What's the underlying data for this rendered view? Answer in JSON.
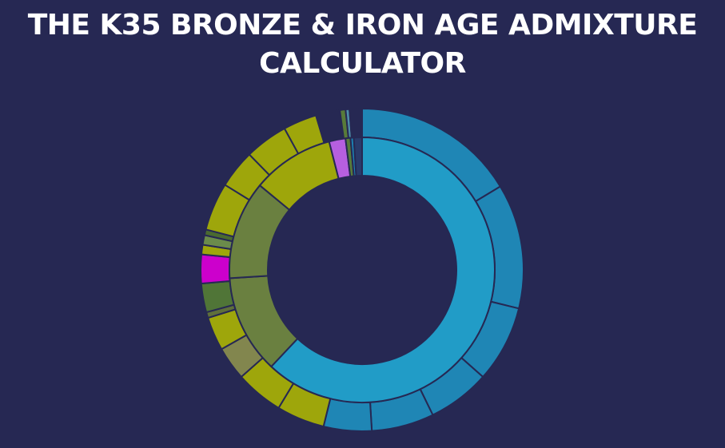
{
  "chart_data": {
    "type": "pie",
    "title": "THE K35 BRONZE & IRON AGE ADMIXTURE CALCULATOR",
    "inner_ring": {
      "values": [
        62.0,
        12.0,
        12.0,
        10.0,
        2.0,
        0.6,
        0.4,
        1.0
      ],
      "colors": [
        "#219CC7",
        "#6A8040",
        "#6A8040",
        "#9EA60B",
        "#B65FDF",
        "#587B39",
        "#1C80B0",
        "#2A3A6A"
      ]
    },
    "outer_ring": {
      "values": [
        17.0,
        13.0,
        8.0,
        6.5,
        6.5,
        5.0,
        5.0,
        5.0,
        3.5,
        3.5,
        0.6,
        3.0,
        3.0,
        1.0,
        1.0,
        0.6,
        5.0,
        4.0,
        4.5,
        3.5,
        2.5,
        0.6,
        0.4,
        1.3
      ],
      "colors": [
        "#1F86B5",
        "#1F86B5",
        "#1F86B5",
        "#1F86B5",
        "#1F86B5",
        "#1F86B5",
        "#9EA60B",
        "#9EA60B",
        "#82864E",
        "#9EA60B",
        "#5F6F3B",
        "#507537",
        "#CC00CC",
        "#9EA60B",
        "#6B8B4B",
        "#4A6A30",
        "#9EA60B",
        "#9EA60B",
        "#9EA60B",
        "#9EA60B",
        "#262853",
        "#587B39",
        "#4F8DA8",
        "#262853"
      ]
    }
  }
}
